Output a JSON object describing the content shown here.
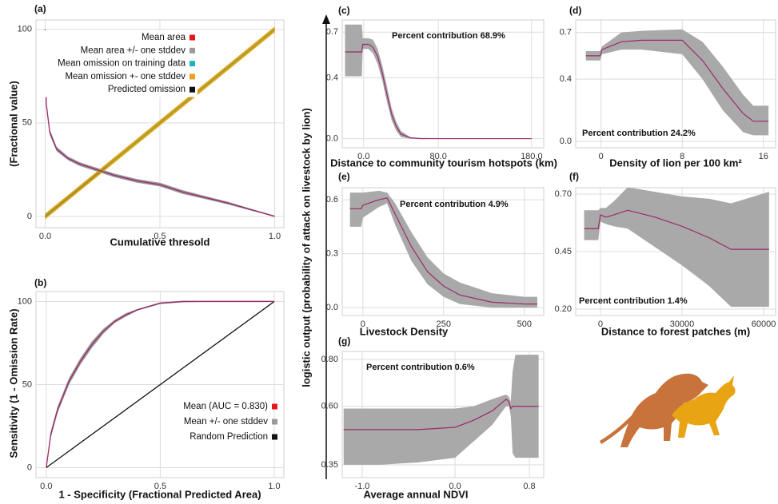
{
  "shared_ylabel": "logistic output (probability of attack on livestock by lion)",
  "chart_data": [
    {
      "type": "line",
      "title": "(a)",
      "xlabel": "Cumulative thresold",
      "ylabel": "(Fractional value)",
      "xlim": [
        -0.04,
        1.04
      ],
      "ylim": [
        -6,
        105
      ],
      "xticks": [
        {
          "value": 0,
          "label": "0.0"
        },
        0.5,
        {
          "value": 1,
          "label": "1.0"
        }
      ],
      "yticks": [
        0,
        50,
        100
      ],
      "grid": true,
      "legend": "upper left",
      "series": [
        {
          "name": "Mean area",
          "color": "#e8141c",
          "line_color": "#9b2a6b",
          "x": [
            0,
            0.005,
            0.02,
            0.05,
            0.1,
            0.15,
            0.2,
            0.3,
            0.4,
            0.5,
            0.6,
            0.7,
            0.8,
            0.9,
            1.0
          ],
          "values": [
            100,
            60,
            45,
            36,
            31,
            28,
            26,
            22,
            19,
            17,
            13,
            10,
            7,
            3.5,
            0
          ]
        },
        {
          "name": "Mean area +/- one stddev",
          "color": "#9a9a9a",
          "x": [
            0,
            0.005,
            0.02,
            0.05,
            0.1,
            0.15,
            0.2,
            0.3,
            0.4,
            0.5,
            0.6,
            0.7,
            0.8,
            0.9,
            1.0
          ],
          "lower": [
            99,
            58,
            43.5,
            34.8,
            30,
            27,
            25,
            21,
            18,
            16,
            12,
            9.2,
            6.3,
            3,
            0
          ],
          "upper": [
            100,
            62,
            46.5,
            37.2,
            32,
            29,
            27,
            23,
            20,
            18,
            14,
            10.8,
            7.7,
            4,
            0.5
          ]
        },
        {
          "name": "Mean omission on training data",
          "color": "#1fb5b8",
          "line_color": "#7aa33a",
          "x": [
            0,
            1
          ],
          "values": [
            0,
            100
          ]
        },
        {
          "name": "Mean omission +- one stddev",
          "color": "#e8a21c",
          "x": [
            0,
            1
          ],
          "lower": [
            -1.5,
            98.5
          ],
          "upper": [
            1.5,
            101.5
          ]
        },
        {
          "name": "Predicted omission",
          "color": "#111111",
          "x": [
            0,
            0.27
          ],
          "values": [
            0,
            27
          ]
        }
      ]
    },
    {
      "type": "line",
      "title": "(b)",
      "xlabel": "1 - Specificity (Fractional Predicted Area)",
      "ylabel": "Sensitivity (1 - Omission Rate)",
      "xlim": [
        -0.045,
        1.042
      ],
      "ylim": [
        -6,
        106
      ],
      "xticks": [
        {
          "value": 0,
          "label": "0.0"
        },
        0.5,
        {
          "value": 1,
          "label": "1.0"
        }
      ],
      "yticks": [
        0,
        50,
        100
      ],
      "grid": true,
      "legend": "lower right",
      "series": [
        {
          "name": "Mean (AUC = 0.830)",
          "color": "#e8141c",
          "line_color": "#9b2a6b",
          "x": [
            0,
            0.02,
            0.05,
            0.1,
            0.15,
            0.2,
            0.25,
            0.3,
            0.35,
            0.4,
            0.5,
            0.6,
            0.8,
            1.0
          ],
          "values": [
            0,
            20,
            35,
            52,
            64,
            74,
            82,
            88,
            92,
            95,
            99,
            100,
            100,
            100
          ]
        },
        {
          "name": "Mean +/- one stddev",
          "color": "#9a9a9a",
          "x": [
            0,
            0.02,
            0.05,
            0.1,
            0.15,
            0.2,
            0.25,
            0.3,
            0.35,
            0.4,
            0.5,
            0.6,
            0.8,
            1.0
          ],
          "lower": [
            0,
            18,
            33,
            50,
            62,
            72,
            80.5,
            87,
            91,
            94.5,
            98.5,
            99.5,
            100,
            100
          ],
          "upper": [
            0,
            22,
            37,
            54,
            66,
            76,
            83.5,
            89,
            93,
            95.5,
            99.5,
            100.5,
            100.5,
            100.5
          ]
        },
        {
          "name": "Random Prediction",
          "color": "#111111",
          "x": [
            0,
            1
          ],
          "values": [
            0,
            100
          ]
        }
      ]
    },
    {
      "type": "response",
      "title": "(c)",
      "xlabel": "Distance to community tourism hotspots (km)",
      "annotation": "Percent contribution 68.9%",
      "xlim": [
        -23,
        193
      ],
      "ylim": [
        -0.06,
        0.78
      ],
      "xticks": [
        {
          "value": 0,
          "label": "0.0"
        },
        {
          "value": 80,
          "label": "80.0"
        },
        {
          "value": 180,
          "label": "180.0"
        }
      ],
      "yticks": [
        {
          "value": 0,
          "label": "0.0"
        },
        0.4,
        0.7
      ],
      "grid": true,
      "color": "#9b2a6b",
      "band_color": "#a9a9a9",
      "x": [
        -20,
        -2,
        -1,
        5,
        10,
        15,
        20,
        25,
        30,
        35,
        40,
        50,
        60,
        80,
        180
      ],
      "values": [
        0.57,
        0.57,
        0.62,
        0.62,
        0.6,
        0.54,
        0.43,
        0.29,
        0.16,
        0.08,
        0.03,
        0.005,
        0,
        0,
        0
      ],
      "lower": [
        0.41,
        0.41,
        0.59,
        0.59,
        0.56,
        0.49,
        0.38,
        0.24,
        0.12,
        0.05,
        0.01,
        0,
        0,
        0,
        0
      ],
      "upper": [
        0.75,
        0.75,
        0.66,
        0.66,
        0.65,
        0.59,
        0.48,
        0.34,
        0.2,
        0.11,
        0.05,
        0.01,
        0.005,
        0.003,
        0.003
      ]
    },
    {
      "type": "response",
      "title": "(d)",
      "xlabel": "Density of lion per 100 km²",
      "annotation": "Percent contribution 24.2%",
      "xlim": [
        -2.5,
        17.2
      ],
      "ylim": [
        -0.04,
        0.78
      ],
      "xticks": [
        0,
        8,
        16
      ],
      "yticks": [
        {
          "value": 0,
          "label": "0.0"
        },
        0.4,
        0.7
      ],
      "grid": true,
      "color": "#9b2a6b",
      "band_color": "#a9a9a9",
      "x": [
        -1.5,
        -0.1,
        0.1,
        2,
        4,
        8,
        10,
        12,
        14,
        15,
        16.5
      ],
      "values": [
        0.55,
        0.55,
        0.59,
        0.64,
        0.65,
        0.65,
        0.52,
        0.34,
        0.18,
        0.13,
        0.13
      ],
      "lower": [
        0.52,
        0.52,
        0.56,
        0.59,
        0.59,
        0.56,
        0.4,
        0.2,
        0.06,
        0.04,
        0.04
      ],
      "upper": [
        0.58,
        0.58,
        0.61,
        0.7,
        0.71,
        0.72,
        0.64,
        0.48,
        0.3,
        0.23,
        0.23
      ]
    },
    {
      "type": "response",
      "title": "(e)",
      "xlabel": "Livestock Density",
      "annotation": "Percent contribution 4.9%",
      "xlim": [
        -64,
        560
      ],
      "ylim": [
        -0.044,
        0.667
      ],
      "xticks": [
        0,
        250,
        500
      ],
      "yticks": [
        {
          "value": 0,
          "label": "0.0"
        },
        0.3,
        0.6
      ],
      "grid": true,
      "color": "#9b2a6b",
      "band_color": "#a9a9a9",
      "x": [
        -40,
        -5,
        0,
        50,
        75,
        100,
        150,
        200,
        250,
        300,
        400,
        500,
        540
      ],
      "values": [
        0.55,
        0.55,
        0.57,
        0.6,
        0.61,
        0.52,
        0.34,
        0.2,
        0.12,
        0.07,
        0.03,
        0.02,
        0.02
      ],
      "lower": [
        0.45,
        0.45,
        0.5,
        0.56,
        0.58,
        0.46,
        0.26,
        0.13,
        0.06,
        0.02,
        0,
        0,
        0
      ],
      "upper": [
        0.64,
        0.64,
        0.64,
        0.65,
        0.64,
        0.58,
        0.42,
        0.28,
        0.19,
        0.14,
        0.08,
        0.06,
        0.06
      ]
    },
    {
      "type": "response",
      "title": "(f)",
      "xlabel": "Distance to forest patches (m)",
      "annotation": "Percent contribution 1.4%",
      "xlim": [
        -9100,
        64400
      ],
      "ylim": [
        0.172,
        0.728
      ],
      "xticks": [
        0,
        30000,
        60000
      ],
      "yticks": [
        {
          "value": 0.2,
          "label": "0.20"
        },
        0.45,
        {
          "value": 0.7,
          "label": "0.70"
        }
      ],
      "grid": true,
      "color": "#9b2a6b",
      "band_color": "#a9a9a9",
      "x": [
        -6000,
        -800,
        0,
        2000,
        5000,
        10000,
        20000,
        30000,
        40000,
        48000,
        62000
      ],
      "values": [
        0.55,
        0.55,
        0.61,
        0.6,
        0.61,
        0.63,
        0.6,
        0.56,
        0.51,
        0.46,
        0.46
      ],
      "lower": [
        0.5,
        0.5,
        0.58,
        0.57,
        0.56,
        0.55,
        0.47,
        0.39,
        0.3,
        0.21,
        0.21
      ],
      "upper": [
        0.63,
        0.63,
        0.64,
        0.64,
        0.67,
        0.73,
        0.71,
        0.69,
        0.68,
        0.66,
        0.71
      ]
    },
    {
      "type": "response",
      "title": "(g)",
      "xlabel": "Average annual NDVI",
      "annotation": "Percent contribution 0.6%",
      "xlim": [
        -1.215,
        0.955
      ],
      "ylim": [
        0.295,
        0.834
      ],
      "xticks": [
        {
          "value": -1,
          "label": "-1.0"
        },
        {
          "value": 0,
          "label": "0.0"
        },
        0.8
      ],
      "yticks": [
        0.35,
        {
          "value": 0.6,
          "label": "0.60"
        },
        {
          "value": 0.8,
          "label": "0.80"
        }
      ],
      "grid": true,
      "color": "#9b2a6b",
      "band_color": "#a9a9a9",
      "x": [
        -1.2,
        -0.8,
        -0.4,
        0,
        0.2,
        0.4,
        0.55,
        0.58,
        0.6,
        0.62,
        0.65,
        0.8,
        0.9
      ],
      "values": [
        0.5,
        0.5,
        0.5,
        0.51,
        0.54,
        0.58,
        0.63,
        0.62,
        0.59,
        0.6,
        0.6,
        0.6,
        0.6
      ],
      "lower": [
        0.35,
        0.35,
        0.36,
        0.38,
        0.45,
        0.52,
        0.6,
        0.6,
        0.56,
        0.4,
        0.38,
        0.38,
        0.38
      ],
      "upper": [
        0.59,
        0.59,
        0.59,
        0.59,
        0.6,
        0.63,
        0.65,
        0.64,
        0.62,
        0.75,
        0.82,
        0.82,
        0.82
      ]
    }
  ]
}
